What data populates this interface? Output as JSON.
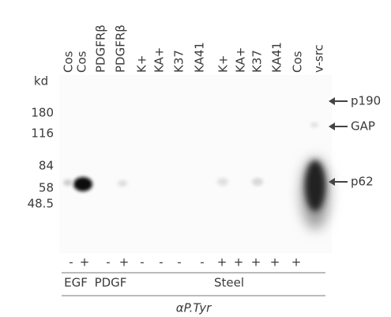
{
  "lanes": [
    "Cos",
    "Cos",
    "PDGFRβ",
    "PDGFRβ",
    "K+",
    "KA+",
    "K37",
    "KA41",
    "K+",
    "KA+",
    "K37",
    "KA41",
    "Cos",
    "v-src"
  ],
  "units": "kd",
  "markers": [
    "180",
    "116",
    "84",
    "58",
    "48.5"
  ],
  "bands": [
    "p190",
    "GAP",
    "p62"
  ],
  "treatment": [
    "-",
    "+",
    "-",
    "+",
    "-",
    "-",
    "-",
    "-",
    "+",
    "+",
    "+",
    "+",
    "+"
  ],
  "groups": [
    "EGF",
    "PDGF",
    "Steel"
  ],
  "antibody": "αP.Tyr"
}
